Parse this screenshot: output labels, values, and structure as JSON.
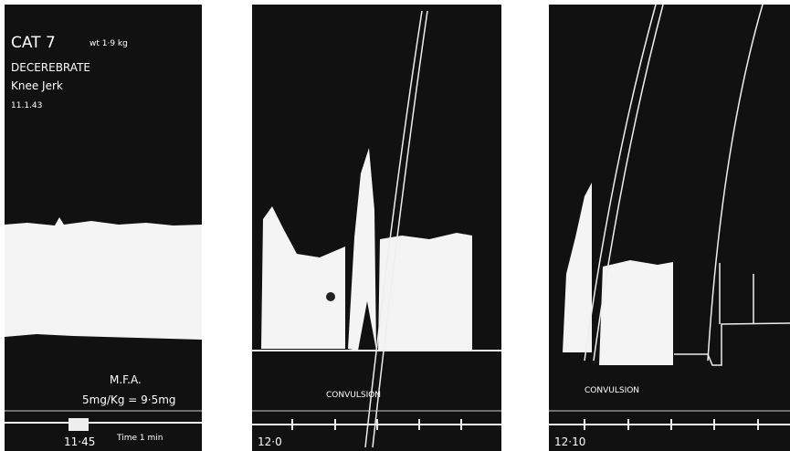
{
  "panels": [
    {
      "title": "CAT 7",
      "weight": "wt 1·9 kg",
      "preparation": "DECEREBRATE",
      "reflex": "Knee Jerk",
      "date": "11.1.43",
      "drug": "M.F.A.",
      "dose": "5mg/Kg = 9·5mg",
      "time_label": "11·45",
      "time_scale": "Time 1 min"
    },
    {
      "event": "CONVULSION",
      "time_label": "12·0"
    },
    {
      "event": "CONVULSION",
      "time_label": "12·10"
    }
  ]
}
